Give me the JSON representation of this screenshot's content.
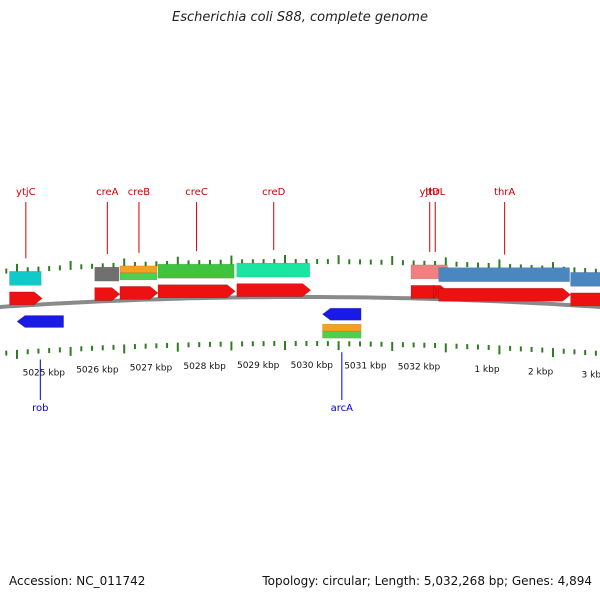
{
  "title": "Escherichia coli S88, complete genome",
  "accession": "Accession: NC_011742",
  "summary": "Topology: circular; Length: 5,032,268 bp; Genes: 4,894",
  "colors": {
    "backbone": "#8a8a8a",
    "gene_arrow": "#ee1111",
    "forward_label": "#cc0000",
    "reverse_label": "#0000cc",
    "reverse_arrow": "#1a1ae6",
    "tick": "#2e7d22"
  },
  "scale_labels": [
    "5025 kbp",
    "5026 kbp",
    "5027 kbp",
    "5028 kbp",
    "5029 kbp",
    "5030 kbp",
    "5031 kbp",
    "5032 kbp",
    "1 kbp",
    "2 kbp",
    "3 kbp"
  ],
  "forward_genes": [
    {
      "name": "ytjC",
      "start": 5024.36,
      "end": 5024.97,
      "feature_color": "#11c9c9"
    },
    {
      "name": "creA",
      "start": 5025.95,
      "end": 5026.42,
      "feature_color": "#707070"
    },
    {
      "name": "creB",
      "start": 5026.42,
      "end": 5027.13,
      "feature_color": "#f5a020|#4fcf4f"
    },
    {
      "name": "creC",
      "start": 5027.13,
      "end": 5028.57,
      "feature_color": "#3ec43e"
    },
    {
      "name": "creD",
      "start": 5028.6,
      "end": 5029.98,
      "feature_color": "#19e6a0"
    },
    {
      "name": "yjtD",
      "start": 5031.85,
      "end": 5032.55,
      "feature_color": "#f08080"
    },
    {
      "name": "thrL",
      "start": 0.0,
      "end": 0.07,
      "feature_color": ""
    },
    {
      "name": "thrA",
      "start": 0.1,
      "end": 2.56,
      "feature_color": "#4a86c0"
    },
    {
      "name": "",
      "start": 2.56,
      "end": 3.9,
      "feature_color": "#4a86c0"
    }
  ],
  "reverse_genes": [
    {
      "name": "rob",
      "start": 5024.5,
      "end": 5025.37,
      "feature_color": ""
    },
    {
      "name": "arcA",
      "start": 5030.2,
      "end": 5030.92,
      "feature_color": "#f5a020|#4fcf4f"
    }
  ]
}
